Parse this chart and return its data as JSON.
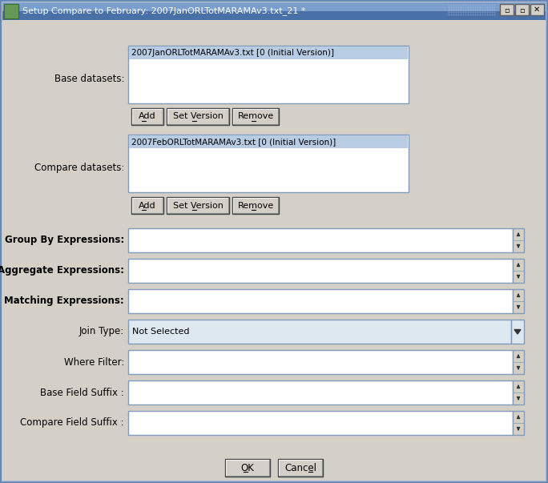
{
  "title": "Setup Compare to February: 2007JanORLTotMARAMAv3.txt_21 *",
  "bg_color": "#d4d0c8",
  "title_bar_color": "#6a8fbd",
  "title_bar_gradient_end": "#4a6fa5",
  "window_border_outer": "#6688bb",
  "window_border_inner": "#aabbcc",
  "listbox_bg": "#ffffff",
  "listbox_selected_bg": "#b8cce4",
  "listbox_border": "#7f9db9",
  "field_bg": "#ffffff",
  "field_border": "#7f9db9",
  "dropdown_bg": "#dde8f0",
  "btn_bg": "#d4d0c8",
  "btn_border_dark": "#404040",
  "btn_border_light": "#ffffff",
  "base_dataset_text": "2007JanORLTotMARAMAv3.txt [0 (Initial Version)]",
  "compare_dataset_text": "2007FebORLTotMARAMAv3.txt [0 (Initial Version)]",
  "join_type_text": "Not Selected",
  "label_base": "Base datasets:",
  "label_compare": "Compare datasets:",
  "label_group": "Group By Expressions:",
  "label_aggregate": "Aggregate Expressions:",
  "label_matching": "Matching Expressions:",
  "label_join": "Join Type:",
  "label_where": "Where Filter:",
  "label_base_field": "Base Field Suffix :",
  "label_compare_field": "Compare Field Suffix :",
  "btn_add": "Add",
  "btn_setver": "Set Version",
  "btn_remove": "Remove",
  "btn_ok": "OK",
  "btn_cancel": "Cancel"
}
